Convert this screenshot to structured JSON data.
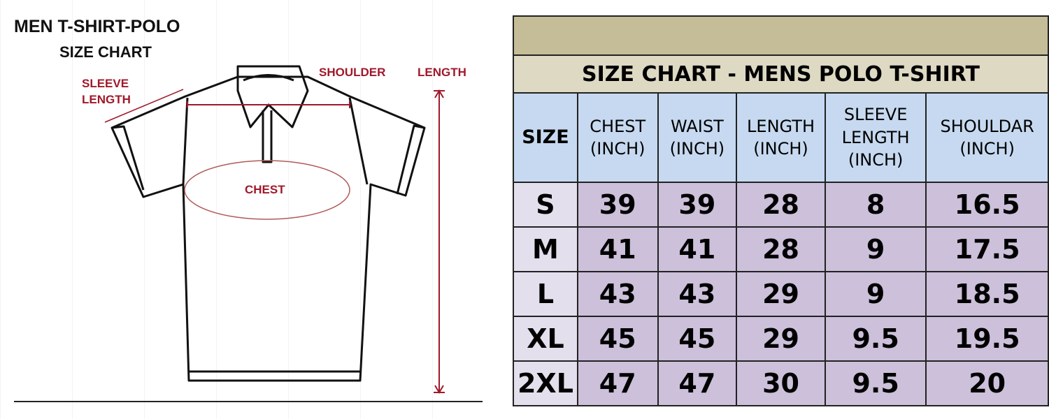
{
  "diagram": {
    "title": "MEN T-SHIRT-POLO",
    "subtitle": "SIZE CHART",
    "labels": {
      "sleeve_line1": "SLEEVE",
      "sleeve_line2": "LENGTH",
      "shoulder": "SHOULDER",
      "length": "LENGTH",
      "chest": "CHEST"
    },
    "accent_color": "#a0182a"
  },
  "table": {
    "title": "SIZE CHART - MENS POLO T-SHIRT",
    "headers": [
      [
        "SIZE"
      ],
      [
        "CHEST",
        "(INCH)"
      ],
      [
        "WAIST",
        "(INCH)"
      ],
      [
        "LENGTH",
        "(INCH)"
      ],
      [
        "SLEEVE",
        "LENGTH",
        "(INCH)"
      ],
      [
        "SHOULDAR",
        "(INCH)"
      ]
    ],
    "rows": [
      [
        "S",
        "39",
        "39",
        "28",
        "8",
        "16.5"
      ],
      [
        "M",
        "41",
        "41",
        "28",
        "9",
        "17.5"
      ],
      [
        "L",
        "43",
        "43",
        "29",
        "9",
        "18.5"
      ],
      [
        "XL",
        "45",
        "45",
        "29",
        "9.5",
        "19.5"
      ],
      [
        "2XL",
        "47",
        "47",
        "30",
        "9.5",
        "20"
      ]
    ],
    "colors": {
      "band": "#c4bd97",
      "title_bg": "#ddd9c3",
      "header_bg": "#c6d9f0",
      "size_bg": "#e4dfec",
      "cell_bg": "#ccc0da"
    }
  }
}
